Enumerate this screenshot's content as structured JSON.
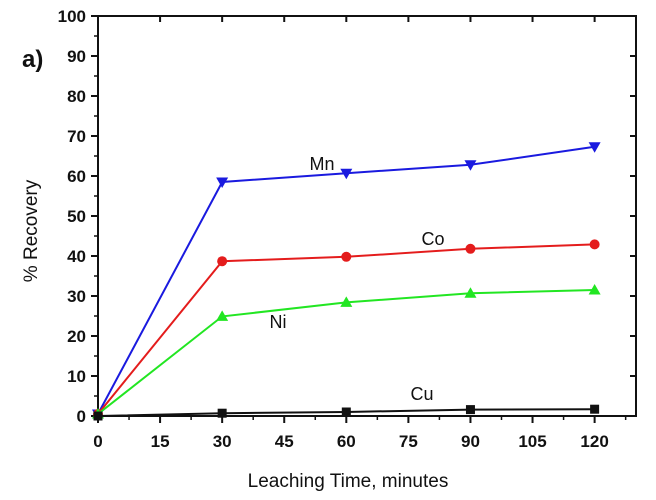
{
  "chart_data": {
    "type": "line",
    "panel_label": "a)",
    "xlabel": "Leaching Time, minutes",
    "ylabel": "% Recovery",
    "xlim": [
      0,
      130
    ],
    "ylim": [
      0,
      100
    ],
    "x_ticks": [
      0,
      15,
      30,
      45,
      60,
      75,
      90,
      105,
      120
    ],
    "y_ticks": [
      0,
      10,
      20,
      30,
      40,
      50,
      60,
      70,
      80,
      90,
      100
    ],
    "x": [
      0,
      30,
      60,
      90,
      120
    ],
    "series": [
      {
        "name": "Mn",
        "color": "#1a1adf",
        "marker": "triangle-down",
        "values": [
          0.5,
          58.5,
          60.7,
          62.8,
          67.3
        ]
      },
      {
        "name": "Co",
        "color": "#e41c1c",
        "marker": "circle",
        "values": [
          0.5,
          38.7,
          39.8,
          41.8,
          42.9
        ]
      },
      {
        "name": "Ni",
        "color": "#22e622",
        "marker": "triangle-up",
        "values": [
          0.5,
          24.9,
          28.4,
          30.7,
          31.5
        ]
      },
      {
        "name": "Cu",
        "color": "#111111",
        "marker": "square",
        "values": [
          0.0,
          0.7,
          1.0,
          1.6,
          1.7
        ]
      }
    ]
  }
}
